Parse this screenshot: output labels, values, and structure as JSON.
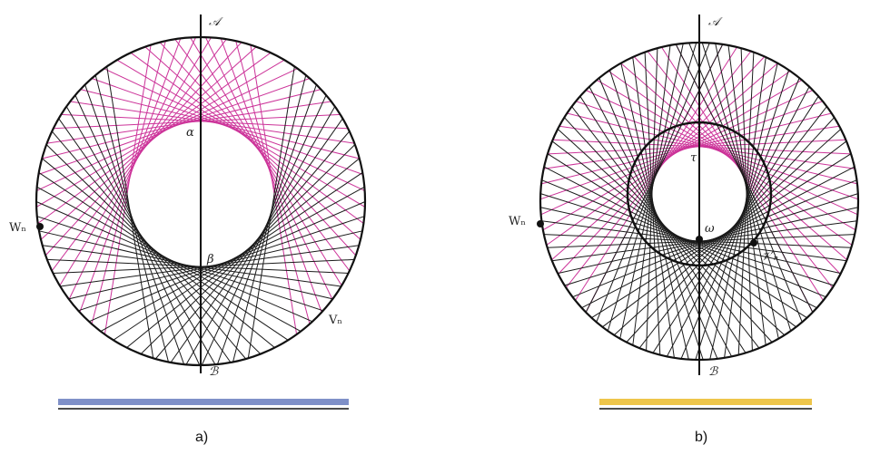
{
  "colors": {
    "circle": "#111111",
    "black_chords": "#1a1a1a",
    "magenta_chords": "#cc3399",
    "bar_a": "#7f90c8",
    "bar_b": "#eec54a"
  },
  "panel_a": {
    "caption": "a)",
    "labels": {
      "top_axis": "𝒜",
      "bottom_axis": "ℬ",
      "alpha": "α",
      "beta": "β",
      "w_point": "Wₙ",
      "v_point": "Vₙ"
    }
  },
  "panel_b": {
    "caption": "b)",
    "labels": {
      "top_axis": "𝒜",
      "bottom_axis": "ℬ",
      "tau": "τ",
      "omega": "ω",
      "w_point": "Wₙ",
      "v_prime_point": "𝒱′ₙ"
    }
  }
}
